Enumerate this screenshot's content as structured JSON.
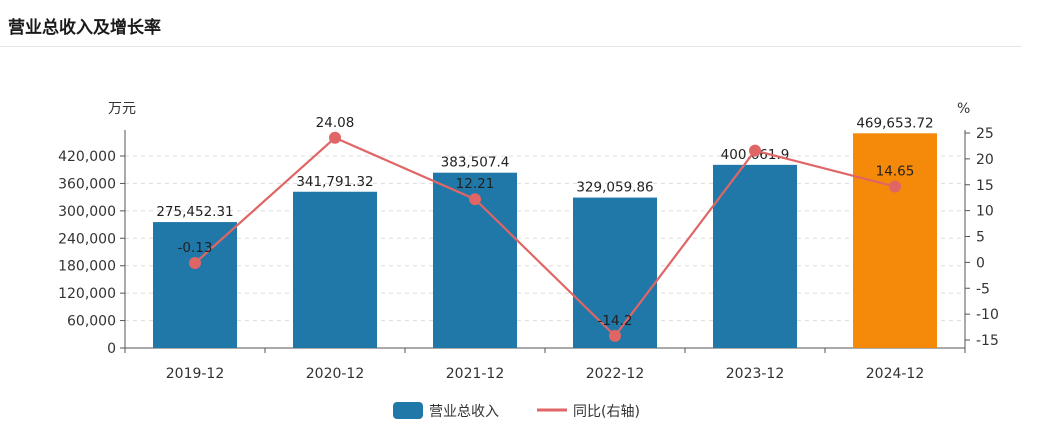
{
  "title": "营业总收入及增长率",
  "chart_data": {
    "type": "bar",
    "categories": [
      "2019-12",
      "2020-12",
      "2021-12",
      "2022-12",
      "2023-12",
      "2024-12"
    ],
    "series": [
      {
        "name": "营业总收入",
        "type": "bar",
        "axis": "left",
        "values": [
          275452.31,
          341791.32,
          383507.4,
          329059.86,
          400661.9,
          469653.72
        ],
        "labels": [
          "275,452.31",
          "341,791.32",
          "383,507.4",
          "329,059.86",
          "400,661.9",
          "469,653.72"
        ],
        "color": "#1f78a8",
        "highlight_color": "#f5890a",
        "highlight_index": 5
      },
      {
        "name": "同比(右轴)",
        "type": "line",
        "axis": "right",
        "values": [
          -0.13,
          24.08,
          12.21,
          -14.2,
          21.6,
          14.65
        ],
        "labels": [
          "-0.13",
          "24.08",
          "12.21",
          "-14.2",
          "",
          "14.65"
        ],
        "color": "#e06666"
      }
    ],
    "y_left": {
      "unit": "万元",
      "min": 0,
      "max": 480000,
      "ticks": [
        0,
        60000,
        120000,
        180000,
        240000,
        300000,
        360000,
        420000
      ],
      "tick_labels": [
        "0",
        "60,000",
        "120,000",
        "180,000",
        "240,000",
        "300,000",
        "360,000",
        "420,000"
      ]
    },
    "y_right": {
      "unit": "%",
      "min": -15,
      "max": 25,
      "ticks": [
        -15,
        -10,
        -5,
        0,
        5,
        10,
        15,
        20,
        25
      ],
      "tick_labels": [
        "-15",
        "-10",
        "-5",
        "0",
        "5",
        "10",
        "15",
        "20",
        "25"
      ]
    },
    "grid": true,
    "legend": "bottom-center"
  }
}
